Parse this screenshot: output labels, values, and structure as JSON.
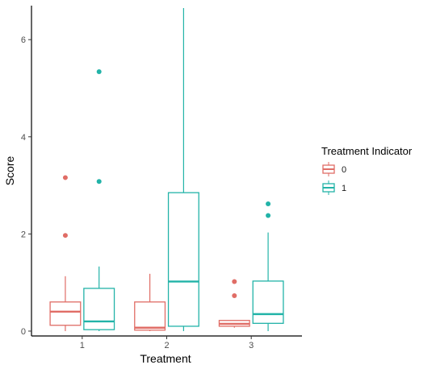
{
  "chart_data": {
    "type": "boxplot",
    "xlabel": "Treatment",
    "ylabel": "Score",
    "categories": [
      "1",
      "2",
      "3"
    ],
    "ylim": [
      -0.1,
      6.7
    ],
    "yticks": [
      0,
      2,
      4,
      6
    ],
    "grid": false,
    "legend": {
      "title": "Treatment Indicator",
      "position": "right"
    },
    "series": [
      {
        "name": "0",
        "color": "#E06D66",
        "boxes": [
          {
            "category": "1",
            "min": 0.0,
            "q1": 0.12,
            "median": 0.4,
            "q3": 0.6,
            "max": 1.13,
            "outliers": [
              1.97,
              3.16
            ]
          },
          {
            "category": "2",
            "min": 0.0,
            "q1": 0.02,
            "median": 0.07,
            "q3": 0.6,
            "max": 1.18,
            "outliers": []
          },
          {
            "category": "3",
            "min": 0.07,
            "q1": 0.1,
            "median": 0.15,
            "q3": 0.22,
            "max": 0.22,
            "outliers": [
              0.73,
              1.02
            ]
          }
        ]
      },
      {
        "name": "1",
        "color": "#22B3A8",
        "boxes": [
          {
            "category": "1",
            "min": 0.0,
            "q1": 0.03,
            "median": 0.2,
            "q3": 0.88,
            "max": 1.33,
            "outliers": [
              3.08,
              5.34
            ]
          },
          {
            "category": "2",
            "min": 0.0,
            "q1": 0.1,
            "median": 1.02,
            "q3": 2.85,
            "max": 6.65,
            "outliers": []
          },
          {
            "category": "3",
            "min": 0.0,
            "q1": 0.16,
            "median": 0.35,
            "q3": 1.03,
            "max": 2.03,
            "outliers": [
              2.38,
              2.62
            ]
          }
        ]
      }
    ]
  }
}
